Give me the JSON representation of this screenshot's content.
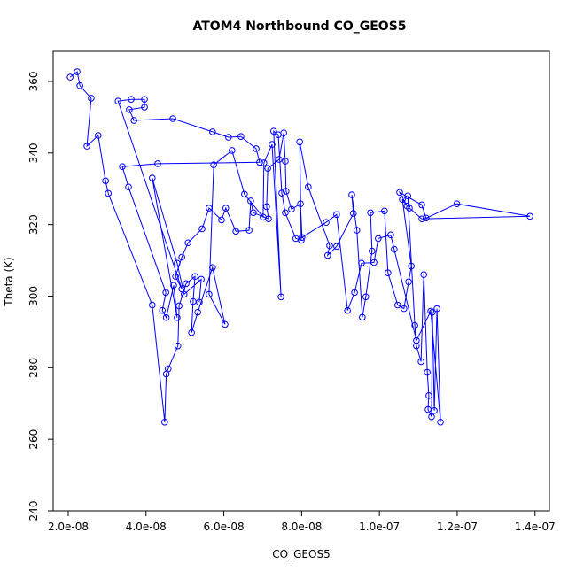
{
  "chart_data": {
    "type": "scatter-line",
    "title": "ATOM4 Northbound CO_GEOS5",
    "x_label": "CO_GEOS5",
    "y_label": "Theta (K)",
    "color": "#0000ff",
    "xlim": [
      1.613e-08,
      1.437e-07
    ],
    "ylim": [
      240,
      368.4
    ],
    "xticks": [
      {
        "value": 2e-08,
        "label": "2.0e-08"
      },
      {
        "value": 4e-08,
        "label": "4.0e-08"
      },
      {
        "value": 6e-08,
        "label": "6.0e-08"
      },
      {
        "value": 8e-08,
        "label": "8.0e-08"
      },
      {
        "value": 1e-07,
        "label": "1.0e-07"
      },
      {
        "value": 1.2e-07,
        "label": "1.2e-07"
      },
      {
        "value": 1.4e-07,
        "label": "1.4e-07"
      }
    ],
    "yticks": [
      240,
      260,
      280,
      300,
      320,
      340,
      360
    ],
    "series": [
      {
        "name": "ATOM4 Northbound",
        "color": "#0000ff",
        "x": [
          2.05e-08,
          2.23e-08,
          2.3e-08,
          2.59e-08,
          2.48e-08,
          2.77e-08,
          2.96e-08,
          3.03e-08,
          4.16e-08,
          4.48e-08,
          4.52e-08,
          4.57e-08,
          4.82e-08,
          4.85e-08,
          5.03e-08,
          5.26e-08,
          5.21e-08,
          5.17e-08,
          5.33e-08,
          5.71e-08,
          6.03e-08,
          5.62e-08,
          5.74e-08,
          6.21e-08,
          6.53e-08,
          7.01e-08,
          7.03e-08,
          7.24e-08,
          7.47e-08,
          7.28e-08,
          7.4e-08,
          7.49e-08,
          7.58e-08,
          7.85e-08,
          7.99e-08,
          7.95e-08,
          8.17e-08,
          8.72e-08,
          8.67e-08,
          8.9e-08,
          9.33e-08,
          9.29e-08,
          9.42e-08,
          9.56e-08,
          9.65e-08,
          9.81e-08,
          9.77e-08,
          1.013e-07,
          1.022e-07,
          1.047e-07,
          1.063e-07,
          1.075e-07,
          1.082e-07,
          1.059e-07,
          1.071e-07,
          1.052e-07,
          1.109e-07,
          1.12e-07,
          1.199e-07,
          1.387e-07,
          1.109e-07,
          1.077e-07,
          1.073e-07,
          1.091e-07,
          1.095e-07,
          1.107e-07,
          1.114e-07,
          1.123e-07,
          1.127e-07,
          1.125e-07,
          1.134e-07,
          1.136e-07,
          1.141e-07,
          1.148e-07,
          1.157e-07,
          1.132e-07,
          1.095e-07,
          1.038e-07,
          1.029e-07,
          9.97e-08,
          9.86e-08,
          9.54e-08,
          9.36e-08,
          9.18e-08,
          8.9e-08,
          8.63e-08,
          8.01e-08,
          7.97e-08,
          7.74e-08,
          7.6e-08,
          7.58e-08,
          7.54e-08,
          7.42e-08,
          7.13e-08,
          7.1e-08,
          7.15e-08,
          6.76e-08,
          6.69e-08,
          6.65e-08,
          6.31e-08,
          6.05e-08,
          5.94e-08,
          5.62e-08,
          5.44e-08,
          5.08e-08,
          4.92e-08,
          4.76e-08,
          4.92e-08,
          3.28e-08,
          3.62e-08,
          3.96e-08,
          3.96e-08,
          3.57e-08,
          3.69e-08,
          4.69e-08,
          5.71e-08,
          6.12e-08,
          6.44e-08,
          6.83e-08,
          6.92e-08,
          4.3e-08,
          3.39e-08,
          3.55e-08,
          4.51e-08,
          4.42e-08,
          4.52e-08,
          4.71e-08,
          4.8e-08,
          4.16e-08,
          4.8e-08,
          4.98e-08,
          5.42e-08,
          5.37e-08
        ],
        "values": [
          361.2,
          362.7,
          358.8,
          355.3,
          341.9,
          344.9,
          332.2,
          328.7,
          297.5,
          264.8,
          278.2,
          279.7,
          286.1,
          297.3,
          303.5,
          305.5,
          298.5,
          289.8,
          295.5,
          308,
          292.1,
          300.5,
          336.7,
          340.7,
          328.5,
          322.1,
          337.2,
          342.4,
          299.8,
          346.1,
          345.1,
          328.8,
          323.3,
          316.1,
          315.6,
          343.1,
          330.5,
          314.1,
          311.4,
          313.9,
          323.1,
          328.3,
          318.4,
          294.1,
          299.8,
          312.6,
          323.3,
          323.8,
          306.5,
          297.5,
          296.5,
          304,
          308.4,
          327,
          325.2,
          329,
          325.5,
          321.8,
          325.8,
          322.3,
          321.6,
          324.6,
          328,
          291.8,
          286.1,
          281.7,
          306,
          278.7,
          272.2,
          268.3,
          266.3,
          295.5,
          268,
          296.5,
          264.8,
          295.8,
          287.6,
          313.1,
          317.1,
          316.1,
          309.4,
          309.2,
          301,
          296,
          322.8,
          320.6,
          316.4,
          325.8,
          324.3,
          329.3,
          337.7,
          345.6,
          338.2,
          335.7,
          325,
          321.6,
          323.3,
          326.6,
          318.4,
          318.1,
          324.6,
          321.3,
          324.6,
          318.8,
          314.9,
          310.9,
          305.5,
          302,
          354.5,
          355,
          355,
          352.8,
          352.1,
          349.1,
          349.6,
          345.9,
          344.4,
          344.6,
          341.2,
          337.4,
          337,
          336.2,
          330.5,
          301,
          296,
          294,
          303,
          294,
          333,
          309.2,
          300.5,
          304.7,
          298.3
        ]
      }
    ]
  }
}
